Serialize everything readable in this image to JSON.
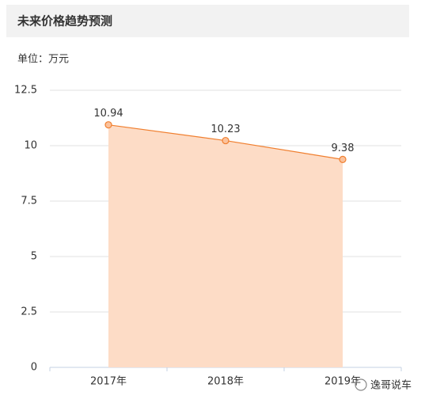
{
  "header": {
    "title": "未来价格趋势预测"
  },
  "chart_data": {
    "type": "area",
    "unit_label": "单位：万元",
    "categories": [
      "2017年",
      "2018年",
      "2019年"
    ],
    "values": [
      10.94,
      10.23,
      9.38
    ],
    "color": "#f07f2f",
    "fill": "#fddcc6",
    "ylim": [
      0,
      12.5
    ],
    "yticks": [
      0,
      2.5,
      5,
      7.5,
      10,
      12.5
    ],
    "grid": true
  },
  "watermark": "逸哥说车"
}
